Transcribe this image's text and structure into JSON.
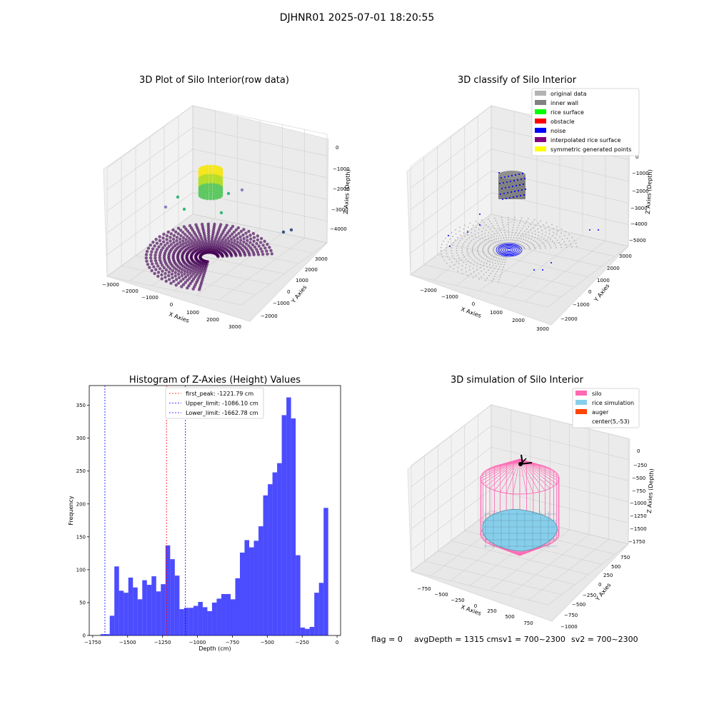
{
  "suptitle": "DJHNR01 2025-07-01 18:20:55",
  "footer": {
    "flag": "flag = 0",
    "avg": "avgDepth = 1315 cmsv1 = 700~2300",
    "sv2": "sv2 = 700~2300"
  },
  "panel1": {
    "title": "3D Plot of Silo Interior(row data)",
    "xlabel": "X Axies",
    "ylabel": "Y Axies",
    "zlabel": "Z Axies (Depth)",
    "xticks": [
      "−3000",
      "−2000",
      "−1000",
      "0",
      "1000",
      "2000",
      "3000"
    ],
    "yticks": [
      "−2000",
      "−1000",
      "0",
      "1000",
      "2000",
      "3000"
    ],
    "zticks": [
      "0",
      "−1000",
      "−2000",
      "−3000",
      "−4000"
    ]
  },
  "panel2": {
    "title": "3D classify of Silo Interior",
    "xlabel": "X Axies",
    "ylabel": "Y Axies",
    "zlabel": "Z Axies (Depth)",
    "xticks": [
      "−2000",
      "−1000",
      "0",
      "1000",
      "2000",
      "3000"
    ],
    "yticks": [
      "−2000",
      "−1000",
      "0",
      "1000",
      "2000",
      "3000"
    ],
    "zticks": [
      "0",
      "−1000",
      "−2000",
      "−3000",
      "−4000",
      "−5000"
    ],
    "legend": [
      {
        "label": "original data",
        "color": "#b3b3b3"
      },
      {
        "label": "inner wall",
        "color": "#808080"
      },
      {
        "label": "rice surface",
        "color": "#00ff00"
      },
      {
        "label": "obstacle",
        "color": "#ff0000"
      },
      {
        "label": "noise",
        "color": "#0000ff"
      },
      {
        "label": "interpolated rice surface",
        "color": "#800080"
      },
      {
        "label": "symmetric generated points",
        "color": "#ffff00"
      }
    ]
  },
  "panel4": {
    "title": "3D simulation of Silo Interior",
    "xlabel": "X Axies",
    "ylabel": "Y Axies",
    "zlabel": "Z Axies (Depth)",
    "xticks": [
      "−750",
      "−500",
      "−250",
      "0",
      "250",
      "500",
      "750"
    ],
    "yticks": [
      "−1000",
      "−750",
      "−500",
      "−250",
      "0",
      "250",
      "500",
      "750"
    ],
    "zticks": [
      "0",
      "−250",
      "−500",
      "−750",
      "−1000",
      "−1250",
      "−1500",
      "−1750"
    ],
    "legend": [
      {
        "label": "silo",
        "color": "#ff69b4"
      },
      {
        "label": "rice simulation",
        "color": "#87ceeb"
      },
      {
        "label": "auger",
        "color": "#ff4500"
      },
      {
        "label": "center(5,-53)",
        "color": ""
      }
    ]
  },
  "chart_data": {
    "type": "bar",
    "title": "Histogram of Z-Axies (Height) Values",
    "xlabel": "Depth (cm)",
    "ylabel": "Frequency",
    "xlim": [
      -1775,
      25
    ],
    "ylim": [
      0,
      380
    ],
    "bar_color": "#0000ff",
    "xticks": [
      -1750,
      -1500,
      -1250,
      -1000,
      -750,
      -500,
      -250,
      0
    ],
    "yticks": [
      0,
      50,
      100,
      150,
      200,
      250,
      300,
      350
    ],
    "bins_start": -1695,
    "bin_width": 33.3,
    "values": [
      2,
      2,
      30,
      105,
      68,
      65,
      88,
      73,
      55,
      84,
      77,
      90,
      67,
      78,
      137,
      116,
      91,
      40,
      42,
      42,
      45,
      51,
      43,
      37,
      50,
      56,
      63,
      63,
      55,
      87,
      126,
      145,
      134,
      144,
      166,
      213,
      230,
      248,
      262,
      335,
      362,
      330,
      122,
      12,
      10,
      13,
      65,
      80,
      194
    ],
    "lines": [
      {
        "label": "first_peak: -1221.79 cm",
        "x": -1221.79,
        "color": "#ff0000"
      },
      {
        "label": "Upper_limit: -1086.10 cm",
        "x": -1086.1,
        "color": "#0000ff"
      },
      {
        "label": "Lower_limit: -1662.78 cm",
        "x": -1662.78,
        "color": "#0000ff"
      }
    ],
    "legend": "top-center"
  }
}
